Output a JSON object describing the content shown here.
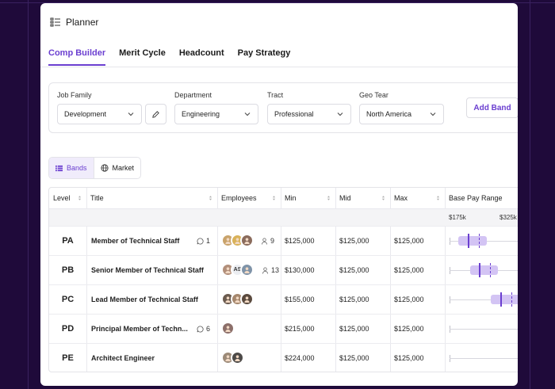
{
  "app": {
    "title": "Planner",
    "icon": "list-icon"
  },
  "tabs": [
    {
      "label": "Comp Builder",
      "active": true
    },
    {
      "label": "Merit Cycle",
      "active": false
    },
    {
      "label": "Headcount",
      "active": false
    },
    {
      "label": "Pay Strategy",
      "active": false
    }
  ],
  "filters": {
    "job_family": {
      "label": "Job Family",
      "value": "Development"
    },
    "department": {
      "label": "Department",
      "value": "Engineering"
    },
    "tract": {
      "label": "Tract",
      "value": "Professional"
    },
    "geo_tier": {
      "label": "Geo Tear",
      "value": "North America"
    },
    "add_band_label": "Add Band"
  },
  "view_toggle": {
    "bands_label": "Bands",
    "market_label": "Market",
    "active": "bands"
  },
  "table": {
    "headers": {
      "level": "Level",
      "title": "Title",
      "employees": "Employees",
      "min": "Min",
      "mid": "Mid",
      "max": "Max",
      "range": "Base Pay Range"
    },
    "range_ticks": [
      "$175k",
      "$325k"
    ],
    "rows": [
      {
        "level": "PA",
        "title": "Member of Technical Staff",
        "comments": "1",
        "employees": "9",
        "min": "$125,000",
        "mid": "$125,000",
        "max": "$125,000",
        "avatars": [
          "#c9a36b",
          "#d9b25a",
          "#8a6b5c"
        ],
        "range": {
          "start": 0.12,
          "end": 0.49,
          "mark": 0.24,
          "dash": 0.39
        }
      },
      {
        "level": "PB",
        "title": "Senior Member of Technical Staff",
        "comments": "",
        "employees": "13",
        "min": "$130,000",
        "mid": "$125,000",
        "max": "$125,000",
        "avatars": [
          "#b28f7a",
          "AS",
          "#7f93a8"
        ],
        "range": {
          "start": 0.27,
          "end": 0.64,
          "mark": 0.39,
          "dash": 0.54
        }
      },
      {
        "level": "PC",
        "title": "Lead Member of Technical Staff",
        "comments": "",
        "employees": "",
        "min": "$155,000",
        "mid": "$125,000",
        "max": "$125,000",
        "avatars": [
          "#6b5b4f",
          "#a5876d",
          "#5a4a3e"
        ],
        "range": {
          "start": 0.55,
          "end": 0.95,
          "mark": 0.67,
          "dash": 0.82
        }
      },
      {
        "level": "PD",
        "title": "Principal Member of Techn...",
        "comments": "6",
        "employees": "",
        "min": "$215,000",
        "mid": "$125,000",
        "max": "$125,000",
        "avatars": [
          "#8c6f6a"
        ],
        "range": null
      },
      {
        "level": "PE",
        "title": "Architect Engineer",
        "comments": "",
        "employees": "",
        "min": "$224,000",
        "mid": "$125,000",
        "max": "$125,000",
        "avatars": [
          "#9c8a78",
          "#4d4a48"
        ],
        "range": null
      }
    ]
  },
  "colors": {
    "accent": "#6b3fd0",
    "range_fill": "#d3c4f4",
    "background": "#1f0a3a"
  }
}
